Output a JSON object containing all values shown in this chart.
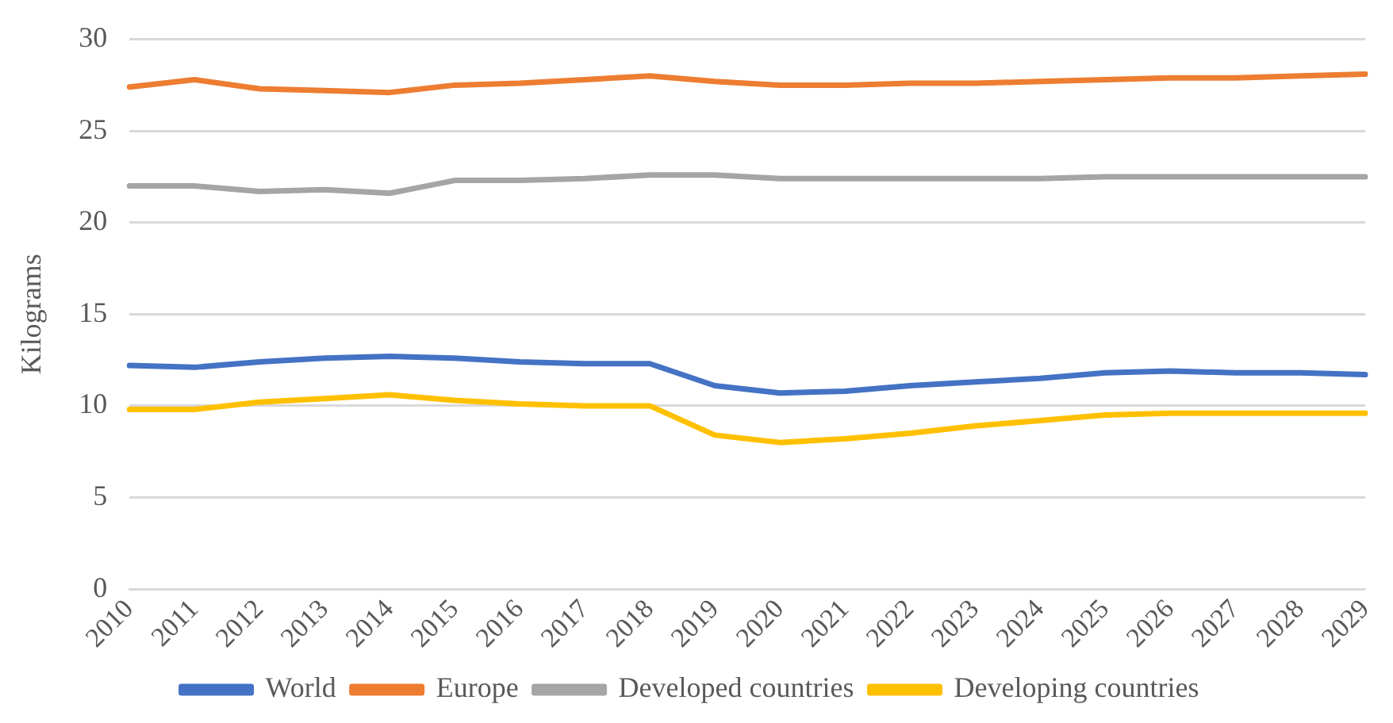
{
  "chart_data": {
    "type": "line",
    "ylabel": "Kilograms",
    "categories": [
      "2010",
      "2011",
      "2012",
      "2013",
      "2014",
      "2015",
      "2016",
      "2017",
      "2018",
      "2019",
      "2020",
      "2021",
      "2022",
      "2023",
      "2024",
      "2025",
      "2026",
      "2027",
      "2028",
      "2029"
    ],
    "series": [
      {
        "name": "World",
        "color": "#4472c4",
        "values": [
          12.2,
          12.1,
          12.4,
          12.6,
          12.7,
          12.6,
          12.4,
          12.3,
          12.3,
          11.1,
          10.7,
          10.8,
          11.1,
          11.3,
          11.5,
          11.8,
          11.9,
          11.8,
          11.8,
          11.7
        ]
      },
      {
        "name": "Europe",
        "color": "#ed7d31",
        "values": [
          27.4,
          27.8,
          27.3,
          27.2,
          27.1,
          27.5,
          27.6,
          27.8,
          28.0,
          27.7,
          27.5,
          27.5,
          27.6,
          27.6,
          27.7,
          27.8,
          27.9,
          27.9,
          28.0,
          28.1
        ]
      },
      {
        "name": "Developed countries",
        "color": "#a5a5a5",
        "values": [
          22.0,
          22.0,
          21.7,
          21.8,
          21.6,
          22.3,
          22.3,
          22.4,
          22.6,
          22.6,
          22.4,
          22.4,
          22.4,
          22.4,
          22.4,
          22.5,
          22.5,
          22.5,
          22.5,
          22.5
        ]
      },
      {
        "name": "Developing countries",
        "color": "#ffc000",
        "values": [
          9.8,
          9.8,
          10.2,
          10.4,
          10.6,
          10.3,
          10.1,
          10.0,
          10.0,
          8.4,
          8.0,
          8.2,
          8.5,
          8.9,
          9.2,
          9.5,
          9.6,
          9.6,
          9.6,
          9.6
        ]
      }
    ],
    "ylim": [
      0,
      30
    ],
    "yticks": [
      0,
      5,
      10,
      15,
      20,
      25,
      30
    ],
    "grid": "y",
    "legend": "bottom",
    "marker": "none",
    "line_style": "solid"
  }
}
